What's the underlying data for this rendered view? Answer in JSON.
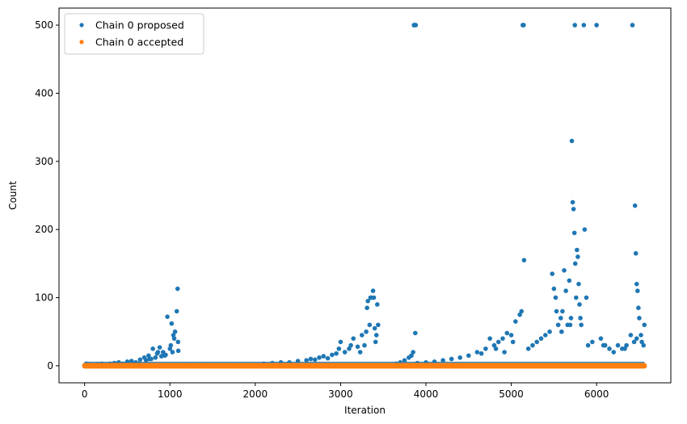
{
  "chart_data": {
    "type": "scatter",
    "title": "",
    "xlabel": "Iteration",
    "ylabel": "Count",
    "xlim": [
      -300,
      6870
    ],
    "ylim": [
      -25,
      525
    ],
    "xticks": [
      0,
      1000,
      2000,
      3000,
      4000,
      5000,
      6000
    ],
    "yticks": [
      0,
      100,
      200,
      300,
      400,
      500
    ],
    "grid": false,
    "legend_position": "top-left",
    "series": [
      {
        "name": "Chain 0 proposed",
        "color": "#1f77b4",
        "x": [
          0,
          20,
          50,
          100,
          150,
          200,
          250,
          300,
          350,
          400,
          450,
          500,
          550,
          600,
          650,
          700,
          720,
          750,
          780,
          800,
          830,
          850,
          880,
          900,
          920,
          950,
          970,
          1000,
          1020,
          1040,
          1060,
          1080,
          1090,
          1095,
          1098,
          1100,
          1200,
          1400,
          1600,
          1800,
          2000,
          2100,
          2200,
          2300,
          2400,
          2500,
          2600,
          2650,
          2700,
          2750,
          2800,
          2850,
          2900,
          2950,
          3000,
          3050,
          3100,
          3150,
          3200,
          3250,
          3280,
          3300,
          3320,
          3340,
          3360,
          3380,
          3390,
          3400,
          3420,
          3430,
          3440,
          3650,
          3700,
          3750,
          3800,
          3830,
          3850,
          3860,
          3870,
          3880,
          3875,
          3862,
          3900,
          4000,
          4100,
          4200,
          4300,
          4400,
          4500,
          4600,
          4700,
          4750,
          4800,
          4850,
          4900,
          4950,
          5000,
          5050,
          5100,
          5120,
          5140,
          5150,
          5145,
          5135,
          5200,
          5250,
          5300,
          5350,
          5400,
          5450,
          5480,
          5500,
          5520,
          5550,
          5580,
          5600,
          5620,
          5640,
          5660,
          5680,
          5700,
          5710,
          5720,
          5730,
          5740,
          5745,
          5750,
          5760,
          5770,
          5780,
          5790,
          5800,
          5820,
          5850,
          5860,
          5900,
          5950,
          6000,
          6050,
          6100,
          6150,
          6200,
          6250,
          6300,
          6350,
          6400,
          6420,
          6440,
          6450,
          6460,
          6470,
          6480,
          6490,
          6500,
          6520,
          6550,
          6560,
          640,
          760,
          860,
          940,
          1010,
          1030,
          1050,
          2980,
          3120,
          3230,
          3310,
          3350,
          3410,
          4650,
          4820,
          4920,
          5020,
          5530,
          5590,
          5690,
          5810,
          5880,
          6080,
          6330,
          6470,
          6530
        ],
        "y": [
          1,
          3,
          2,
          1,
          2,
          3,
          1,
          3,
          4,
          5,
          3,
          6,
          7,
          5,
          9,
          12,
          8,
          15,
          10,
          25,
          12,
          18,
          27,
          14,
          20,
          16,
          72,
          25,
          62,
          45,
          50,
          80,
          113,
          35,
          22,
          1,
          1,
          1,
          1,
          1,
          1,
          3,
          4,
          5,
          5,
          7,
          8,
          10,
          9,
          12,
          14,
          11,
          16,
          18,
          35,
          20,
          25,
          40,
          28,
          45,
          30,
          50,
          95,
          60,
          100,
          110,
          100,
          55,
          45,
          90,
          60,
          3,
          5,
          8,
          12,
          15,
          20,
          500,
          500,
          500,
          48,
          500,
          4,
          5,
          6,
          8,
          10,
          12,
          15,
          20,
          25,
          40,
          30,
          35,
          40,
          48,
          45,
          65,
          75,
          80,
          500,
          155,
          500,
          500,
          25,
          30,
          35,
          40,
          45,
          50,
          135,
          113,
          100,
          60,
          70,
          80,
          140,
          110,
          60,
          125,
          70,
          330,
          240,
          230,
          195,
          500,
          150,
          100,
          170,
          160,
          120,
          90,
          60,
          500,
          200,
          30,
          35,
          500,
          40,
          30,
          25,
          20,
          30,
          25,
          30,
          45,
          500,
          35,
          235,
          165,
          120,
          110,
          85,
          70,
          45,
          30,
          60,
          3,
          10,
          20,
          15,
          30,
          20,
          40,
          25,
          30,
          20,
          85,
          100,
          35,
          18,
          25,
          20,
          35,
          80,
          50,
          60,
          70,
          100,
          30,
          25,
          40,
          35
        ]
      },
      {
        "name": "Chain 0 accepted",
        "color": "#ff7f0e",
        "x": [
          0,
          200,
          400,
          600,
          800,
          1000,
          1200,
          1400,
          1600,
          1800,
          2000,
          2200,
          2400,
          2600,
          2800,
          3000,
          3200,
          3400,
          3600,
          3800,
          4000,
          4200,
          4400,
          4600,
          4800,
          5000,
          5200,
          5400,
          5600,
          5800,
          6000,
          6200,
          6400,
          6560
        ],
        "y": [
          0,
          0,
          0,
          0,
          0,
          0,
          0,
          0,
          0,
          0,
          0,
          0,
          0,
          0,
          0,
          0,
          0,
          0,
          0,
          0,
          0,
          0,
          0,
          0,
          0,
          0,
          0,
          0,
          0,
          0,
          0,
          0,
          0,
          0
        ]
      }
    ]
  }
}
